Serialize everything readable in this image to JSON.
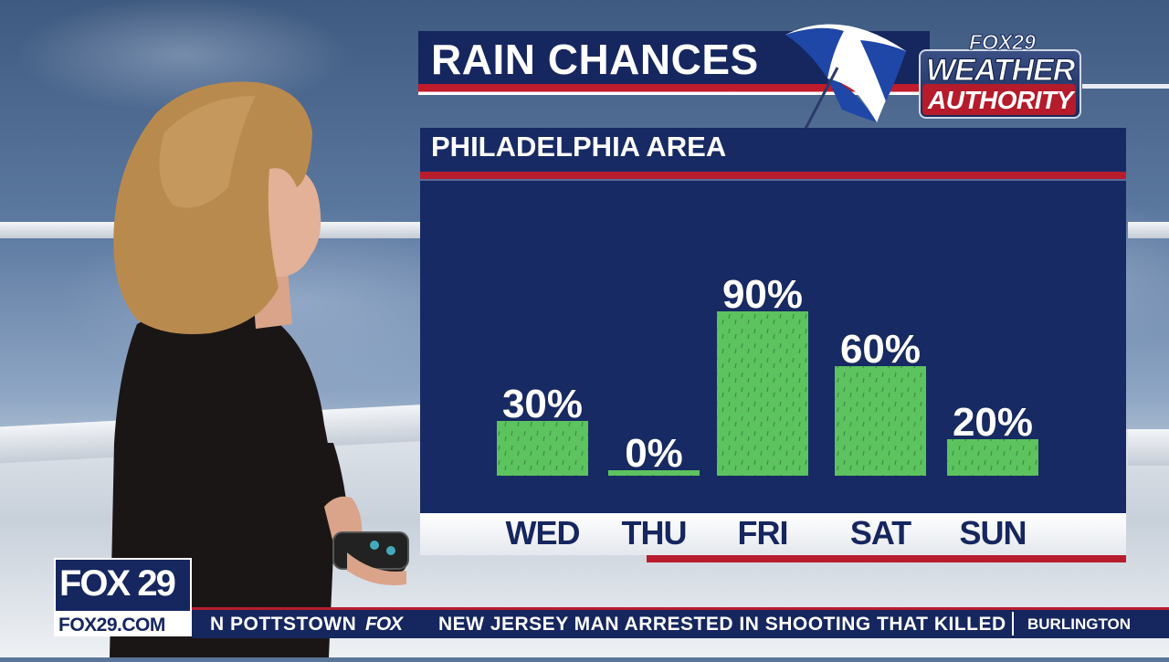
{
  "title": "RAIN CHANCES",
  "subtitle": "PHILADELPHIA AREA",
  "logo": {
    "fox29": "FOX29",
    "weather": "WEATHER",
    "authority": "AUTHORITY"
  },
  "chart_data": {
    "type": "bar",
    "title": "RAIN CHANCES",
    "subtitle": "PHILADELPHIA AREA",
    "categories": [
      "WED",
      "THU",
      "FRI",
      "SAT",
      "SUN"
    ],
    "values": [
      30,
      0,
      90,
      60,
      20
    ],
    "labels": [
      "30%",
      "0%",
      "90%",
      "60%",
      "20%"
    ],
    "unit": "%",
    "ylim": [
      0,
      100
    ],
    "grid": false,
    "bar_color": "#5cc35f"
  },
  "bug": {
    "station": "FOX 29",
    "url": "FOX29.COM"
  },
  "ticker": {
    "left_text": "N POTTSTOWN",
    "brand": "FOX",
    "headline": "NEW JERSEY MAN ARRESTED IN SHOOTING THAT KILLED",
    "right_text": "BURLINGTON"
  },
  "colors": {
    "navy": "#16265e",
    "panel": "#172a63",
    "red": "#b81d2d",
    "bar": "#5cc35f"
  }
}
